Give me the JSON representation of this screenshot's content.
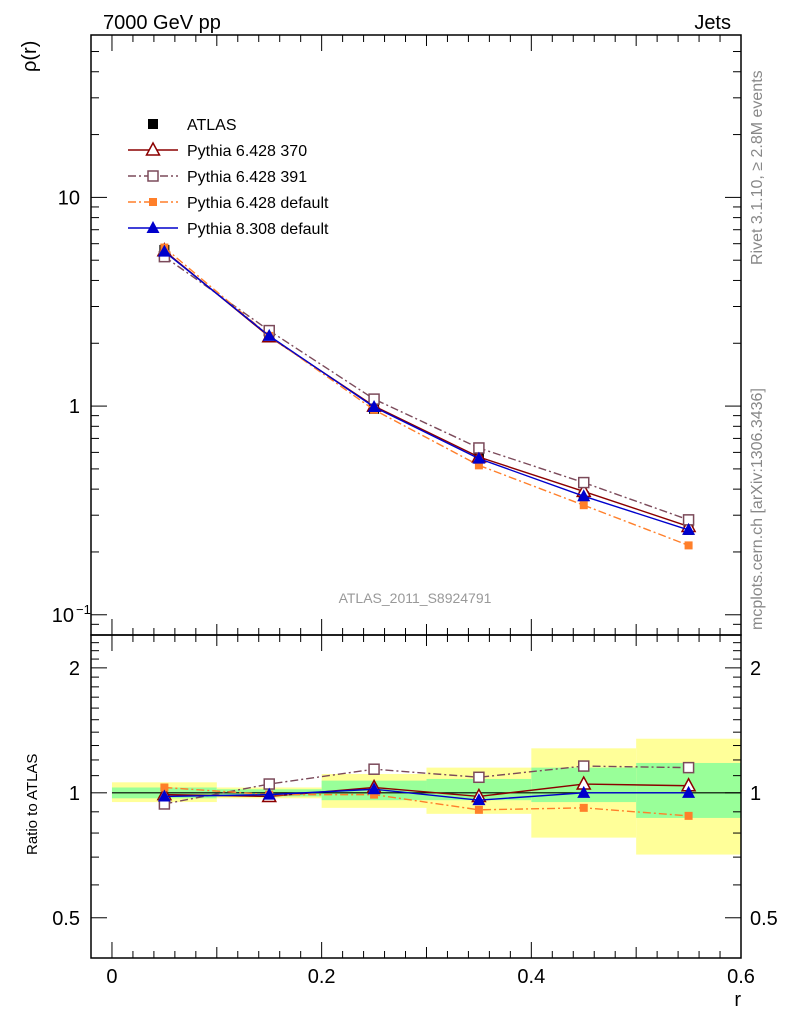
{
  "header": {
    "left": "7000 GeV pp",
    "right": "Jets"
  },
  "side_labels": {
    "top": "Rivet 3.1.10, ≥ 2.8M events",
    "bottom": "mcplots.cern.ch [arXiv:1306.3436]"
  },
  "colors": {
    "ATLAS": "#000000",
    "Pythia 6.428 370": "#8b0000",
    "Pythia 6.428 391": "#7b4a5a",
    "Pythia 6.428 default": "#ff7f2a",
    "Pythia 8.308 default": "#0000cc",
    "band_inner": "#99ff99",
    "band_outer": "#ffff99"
  },
  "chart_data": [
    {
      "type": "line",
      "panel": "main",
      "ylabel": "ρ(r)",
      "yscale": "log",
      "ylim": [
        0.08,
        60
      ],
      "xlim": [
        -0.02,
        0.6
      ],
      "yticks": [
        {
          "value": 0.1,
          "label": "10",
          "exp": "−1"
        },
        {
          "value": 1,
          "label": "1",
          "exp": ""
        },
        {
          "value": 10,
          "label": "10",
          "exp": ""
        }
      ],
      "watermark": "ATLAS_2011_S8924791",
      "legend_position": "top-left",
      "x": [
        0.05,
        0.15,
        0.25,
        0.35,
        0.45,
        0.55
      ],
      "series": [
        {
          "name": "ATLAS",
          "marker": "filled-square",
          "line": "none",
          "values": [
            5.6,
            2.2,
            0.97,
            0.58,
            0.37,
            0.255
          ]
        },
        {
          "name": "Pythia 6.428 370",
          "marker": "open-triangle",
          "line": "solid",
          "values": [
            5.55,
            2.15,
            1.0,
            0.57,
            0.39,
            0.265
          ]
        },
        {
          "name": "Pythia 6.428 391",
          "marker": "open-square",
          "line": "dashdot",
          "values": [
            5.2,
            2.3,
            1.08,
            0.63,
            0.43,
            0.285
          ]
        },
        {
          "name": "Pythia 6.428 default",
          "marker": "small-filled-square",
          "line": "dashdot",
          "values": [
            5.75,
            2.17,
            0.96,
            0.52,
            0.335,
            0.215
          ]
        },
        {
          "name": "Pythia 8.308 default",
          "marker": "filled-triangle",
          "line": "solid",
          "values": [
            5.5,
            2.17,
            0.99,
            0.56,
            0.37,
            0.255
          ]
        }
      ]
    },
    {
      "type": "line",
      "panel": "ratio",
      "ylabel": "Ratio to ATLAS",
      "xlabel": "r",
      "yscale": "log",
      "ylim": [
        0.4,
        2.4
      ],
      "xlim": [
        -0.02,
        0.6
      ],
      "yticks": [
        {
          "value": 0.5,
          "label": "0.5"
        },
        {
          "value": 1,
          "label": "1"
        },
        {
          "value": 2,
          "label": "2"
        }
      ],
      "xticks": [
        0,
        0.2,
        0.4,
        0.6
      ],
      "xtick_labels": [
        "0",
        "0.2",
        "0.4",
        "0.6"
      ],
      "reference": 1,
      "bands": [
        {
          "x0": 0.0,
          "x1": 0.1,
          "inner": [
            0.97,
            1.03
          ],
          "outer": [
            0.95,
            1.06
          ]
        },
        {
          "x0": 0.1,
          "x1": 0.2,
          "inner": [
            0.98,
            1.02
          ],
          "outer": [
            0.97,
            1.03
          ]
        },
        {
          "x0": 0.2,
          "x1": 0.3,
          "inner": [
            0.96,
            1.07
          ],
          "outer": [
            0.92,
            1.11
          ]
        },
        {
          "x0": 0.3,
          "x1": 0.4,
          "inner": [
            0.96,
            1.08
          ],
          "outer": [
            0.89,
            1.15
          ]
        },
        {
          "x0": 0.4,
          "x1": 0.5,
          "inner": [
            0.95,
            1.15
          ],
          "outer": [
            0.78,
            1.28
          ]
        },
        {
          "x0": 0.5,
          "x1": 0.6,
          "inner": [
            0.87,
            1.18
          ],
          "outer": [
            0.71,
            1.35
          ]
        }
      ],
      "x": [
        0.05,
        0.15,
        0.25,
        0.35,
        0.45,
        0.55
      ],
      "series": [
        {
          "name": "Pythia 6.428 370",
          "values": [
            0.99,
            0.98,
            1.03,
            0.98,
            1.05,
            1.04
          ]
        },
        {
          "name": "Pythia 6.428 391",
          "values": [
            0.94,
            1.05,
            1.14,
            1.09,
            1.16,
            1.15
          ]
        },
        {
          "name": "Pythia 6.428 default",
          "values": [
            1.03,
            0.99,
            0.99,
            0.91,
            0.92,
            0.88
          ]
        },
        {
          "name": "Pythia 8.308 default",
          "values": [
            0.98,
            0.99,
            1.02,
            0.96,
            1.0,
            1.0
          ]
        }
      ]
    }
  ]
}
